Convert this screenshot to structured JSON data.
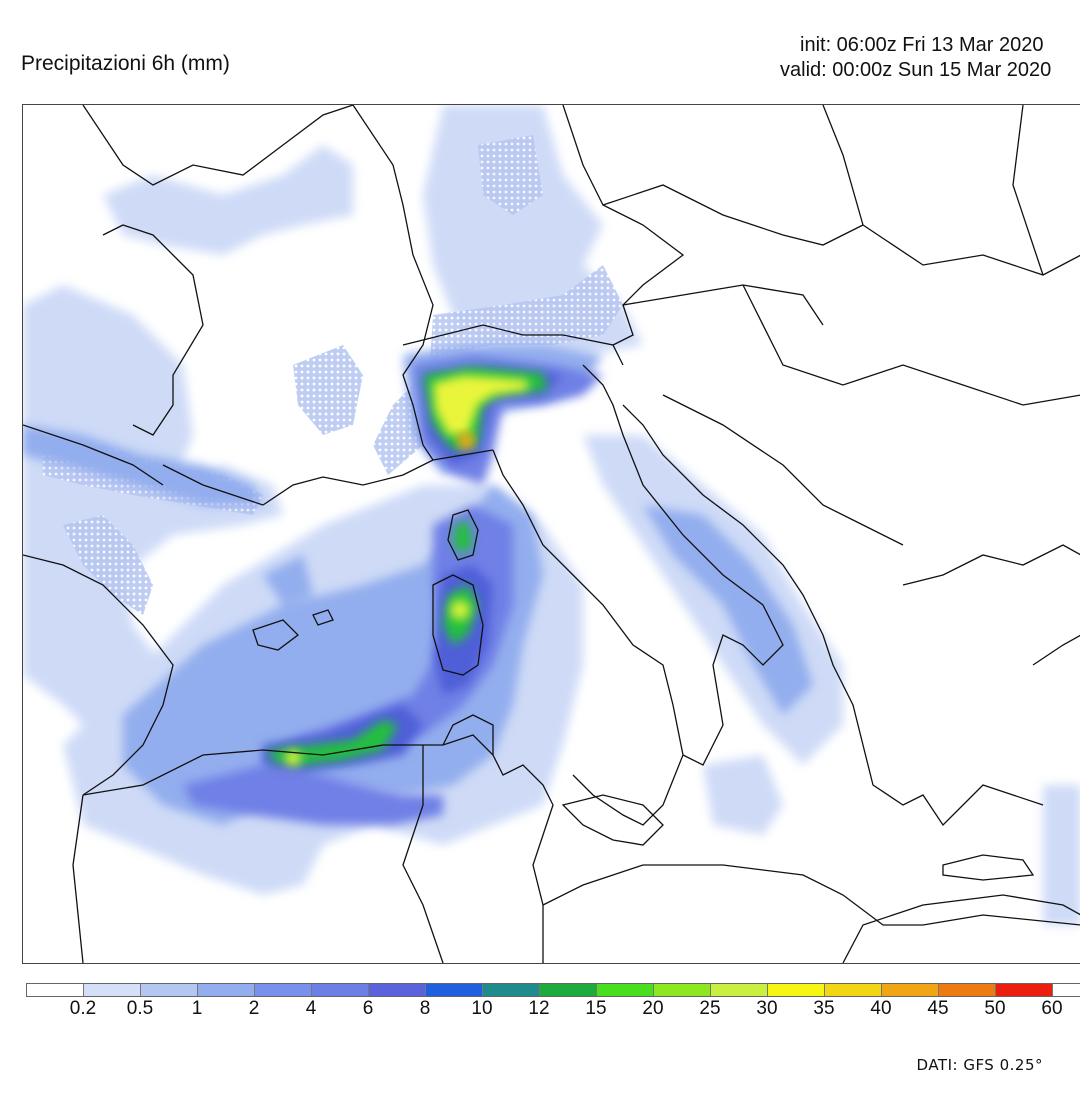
{
  "title": "Precipitazioni 6h (mm)",
  "run": {
    "init": "init: 06:00z Fri 13 Mar 2020",
    "valid": "valid: 00:00z Sun 15 Mar 2020"
  },
  "legend": {
    "thresholds": [
      "0.2",
      "0.5",
      "1",
      "2",
      "4",
      "6",
      "8",
      "10",
      "12",
      "15",
      "20",
      "25",
      "30",
      "35",
      "40",
      "45",
      "50",
      "60"
    ],
    "colors": [
      "#ffffff",
      "#d4e0f8",
      "#b4c6f2",
      "#93aeee",
      "#7891ec",
      "#6c7fe6",
      "#5a62de",
      "#1f5fe0",
      "#1e8c8c",
      "#1cab3c",
      "#48e01e",
      "#8ee820",
      "#c9ef40",
      "#f6f612",
      "#f2d515",
      "#f0a614",
      "#ee7a12",
      "#ec1e10"
    ]
  },
  "source": "DATI: GFS 0.25°",
  "map": {
    "region": "Central Mediterranean / Europe",
    "field": "6h precipitation",
    "colors": {
      "light": "#c9d7f6",
      "medium": "#93aeee",
      "strong": "#6f80e6",
      "heavy": "#4f5fd8",
      "green": "#23c03c",
      "yellow": "#e9f53a",
      "orange": "#f0a614",
      "border": "#111111"
    }
  }
}
